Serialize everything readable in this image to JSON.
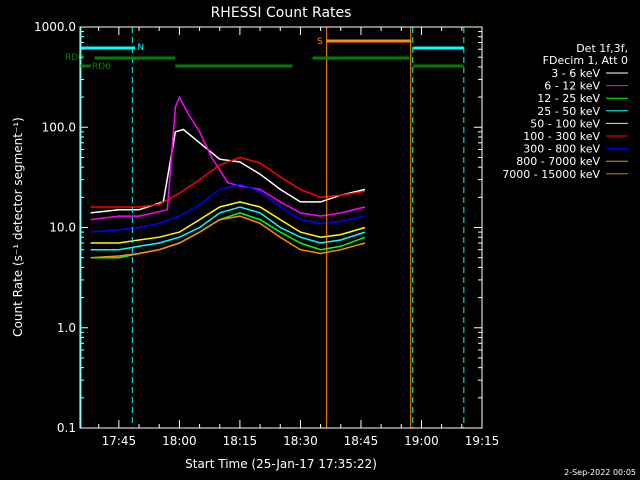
{
  "chart_data": {
    "type": "line",
    "title": "RHESSI Count Rates",
    "xlabel": "Start Time (25-Jan-17 17:35:22)",
    "ylabel": "Count Rate (s⁻¹ detector segment⁻¹)",
    "yscale": "log",
    "ylim": [
      0.1,
      1000
    ],
    "xlim": [
      "17:35:22",
      "19:15:00"
    ],
    "grid": false,
    "legend_position": "right",
    "x_ticks": [
      "17:45",
      "18:00",
      "18:15",
      "18:30",
      "18:45",
      "19:00",
      "19:15"
    ],
    "y_ticks": [
      "0.1",
      "1.0",
      "10.0",
      "100.0",
      "1000.0"
    ],
    "legend_header": [
      "Det 1f,3f,",
      "FDecim 1, Att 0"
    ],
    "footer_date": "2-Sep-2022 00:05",
    "series": [
      {
        "name": "3 - 6 keV",
        "color": "#ffffff",
        "x": [
          "17:38",
          "17:45",
          "17:50",
          "17:56",
          "17:59",
          "18:01",
          "18:05",
          "18:10",
          "18:15",
          "18:20",
          "18:25",
          "18:30",
          "18:35",
          "18:40",
          "18:46"
        ],
        "y": [
          14,
          15,
          15,
          18,
          90,
          95,
          70,
          48,
          45,
          34,
          24,
          18,
          18,
          21,
          24
        ]
      },
      {
        "name": "6 - 12 keV",
        "color": "#ff00ff",
        "x": [
          "17:38",
          "17:45",
          "17:50",
          "17:57",
          "17:59",
          "18:00",
          "18:02",
          "18:05",
          "18:08",
          "18:12",
          "18:15",
          "18:20",
          "18:25",
          "18:30",
          "18:35",
          "18:40",
          "18:46"
        ],
        "y": [
          12,
          13,
          13,
          15,
          160,
          200,
          140,
          90,
          50,
          28,
          26,
          24,
          18,
          14,
          13,
          14,
          16
        ]
      },
      {
        "name": "12 - 25 keV",
        "color": "#00ff00",
        "x": [
          "17:38",
          "17:45",
          "17:50",
          "17:55",
          "18:00",
          "18:05",
          "18:10",
          "18:15",
          "18:20",
          "18:25",
          "18:30",
          "18:35",
          "18:40",
          "18:46"
        ],
        "y": [
          5,
          5,
          5.5,
          6,
          7,
          9,
          12,
          14,
          12,
          9,
          7,
          6,
          6.5,
          8
        ]
      },
      {
        "name": "25 - 50 keV",
        "color": "#00ffff",
        "x": [
          "17:38",
          "17:45",
          "17:50",
          "17:55",
          "18:00",
          "18:05",
          "18:10",
          "18:15",
          "18:20",
          "18:25",
          "18:30",
          "18:35",
          "18:40",
          "18:46"
        ],
        "y": [
          6,
          6,
          6.5,
          7,
          8,
          10,
          14,
          16,
          14,
          10,
          8,
          7,
          7.5,
          9
        ]
      },
      {
        "name": "50 - 100 keV",
        "color": "#ffff00",
        "x": [
          "17:38",
          "17:45",
          "17:50",
          "17:55",
          "18:00",
          "18:05",
          "18:10",
          "18:15",
          "18:20",
          "18:25",
          "18:30",
          "18:35",
          "18:40",
          "18:46"
        ],
        "y": [
          7,
          7,
          7.5,
          8,
          9,
          12,
          16,
          18,
          16,
          12,
          9,
          8,
          8.5,
          10
        ]
      },
      {
        "name": "100 - 300 keV",
        "color": "#ff0000",
        "x": [
          "17:38",
          "17:45",
          "17:50",
          "17:55",
          "18:00",
          "18:05",
          "18:10",
          "18:15",
          "18:20",
          "18:25",
          "18:30",
          "18:35",
          "18:40",
          "18:46"
        ],
        "y": [
          16,
          16,
          16,
          17,
          22,
          30,
          42,
          50,
          44,
          32,
          24,
          20,
          21,
          23
        ]
      },
      {
        "name": "300 - 800 keV",
        "color": "#0000ff",
        "x": [
          "17:38",
          "17:45",
          "17:50",
          "17:55",
          "18:00",
          "18:05",
          "18:10",
          "18:15",
          "18:20",
          "18:25",
          "18:30",
          "18:35",
          "18:40",
          "18:46"
        ],
        "y": [
          9,
          9.5,
          10,
          11,
          13,
          17,
          24,
          27,
          23,
          16,
          12,
          11,
          11.5,
          13
        ]
      },
      {
        "name": "800 - 7000 keV",
        "color": "#ff8c00",
        "x": [
          "17:38",
          "17:45",
          "17:50",
          "17:55",
          "18:00",
          "18:05",
          "18:10",
          "18:15",
          "18:20",
          "18:25",
          "18:30",
          "18:35",
          "18:40",
          "18:46"
        ],
        "y": [
          5,
          5.2,
          5.5,
          6,
          7,
          9,
          12,
          13,
          11,
          8,
          6,
          5.5,
          6,
          7
        ]
      },
      {
        "name": "7000 - 15000 keV",
        "color": "#b8860b",
        "x": [],
        "y": []
      }
    ],
    "attenuator_states": [
      {
        "label": "N",
        "color": "#00ffff"
      },
      {
        "label": "S",
        "color": "#ff8c00"
      },
      {
        "label": "RD0",
        "color": "#008000"
      },
      {
        "label": "RD6",
        "color": "#008000"
      }
    ]
  }
}
